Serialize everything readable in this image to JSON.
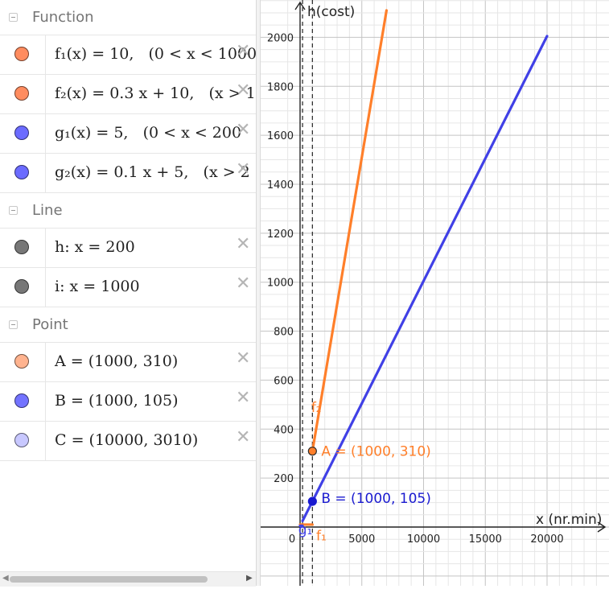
{
  "algebra": {
    "categories": [
      {
        "label": "Function",
        "items": [
          {
            "expr": "f₁(x) = 10,   (0 < x < 1000",
            "color": "#ff8c5f"
          },
          {
            "expr": "f₂(x) = 0.3 x + 10,   (x > 1",
            "color": "#ff8c5f"
          },
          {
            "expr": "g₁(x) = 5,   (0 < x < 200",
            "color": "#6b6bff"
          },
          {
            "expr": "g₂(x) = 0.1 x + 5,   (x > 2",
            "color": "#6b6bff"
          }
        ]
      },
      {
        "label": "Line",
        "items": [
          {
            "expr": "h: x = 200",
            "color": "#777777"
          },
          {
            "expr": "i: x = 1000",
            "color": "#777777"
          }
        ]
      },
      {
        "label": "Point",
        "items": [
          {
            "expr": "A = (1000, 310)",
            "color": "#ffb38f"
          },
          {
            "expr": "B = (1000, 105)",
            "color": "#7373ff"
          },
          {
            "expr": "C = (10000, 3010)",
            "color": "#c8c8ff"
          }
        ]
      }
    ],
    "close_glyph": "✕"
  },
  "graph": {
    "x_axis_label": "x (nr.min)",
    "y_axis_label": "h(cost)",
    "x_ticks": [
      "0",
      "5000",
      "10000",
      "15000",
      "20000"
    ],
    "y_ticks": [
      "200",
      "400",
      "600",
      "800",
      "1000",
      "1200",
      "1400",
      "1600",
      "1800",
      "2000"
    ],
    "labels": {
      "f2": "f₂",
      "f1": "f₁",
      "g1": "g₁",
      "pointA": "A = (1000, 310)",
      "pointB": "B = (1000, 105)"
    },
    "colors": {
      "orange": "#ff7f2a",
      "blue": "#4040e6",
      "blue_text": "#1a1ad0"
    }
  },
  "chart_data": {
    "type": "line",
    "xlabel": "x (nr.min)",
    "ylabel": "h(cost)",
    "xlim": [
      -1500,
      24500
    ],
    "ylim": [
      -200,
      2150
    ],
    "series": [
      {
        "name": "f₂",
        "x": [
          1000,
          7000
        ],
        "y": [
          310,
          2110
        ]
      },
      {
        "name": "g₂",
        "x": [
          200,
          20000
        ],
        "y": [
          25,
          2005
        ]
      },
      {
        "name": "f₁",
        "x": [
          0,
          1000
        ],
        "y": [
          10,
          10
        ]
      },
      {
        "name": "g₁",
        "x": [
          0,
          200
        ],
        "y": [
          5,
          5
        ]
      }
    ],
    "vertical_lines": [
      200,
      1000
    ],
    "points": [
      {
        "name": "A",
        "x": 1000,
        "y": 310
      },
      {
        "name": "B",
        "x": 1000,
        "y": 105
      }
    ]
  }
}
